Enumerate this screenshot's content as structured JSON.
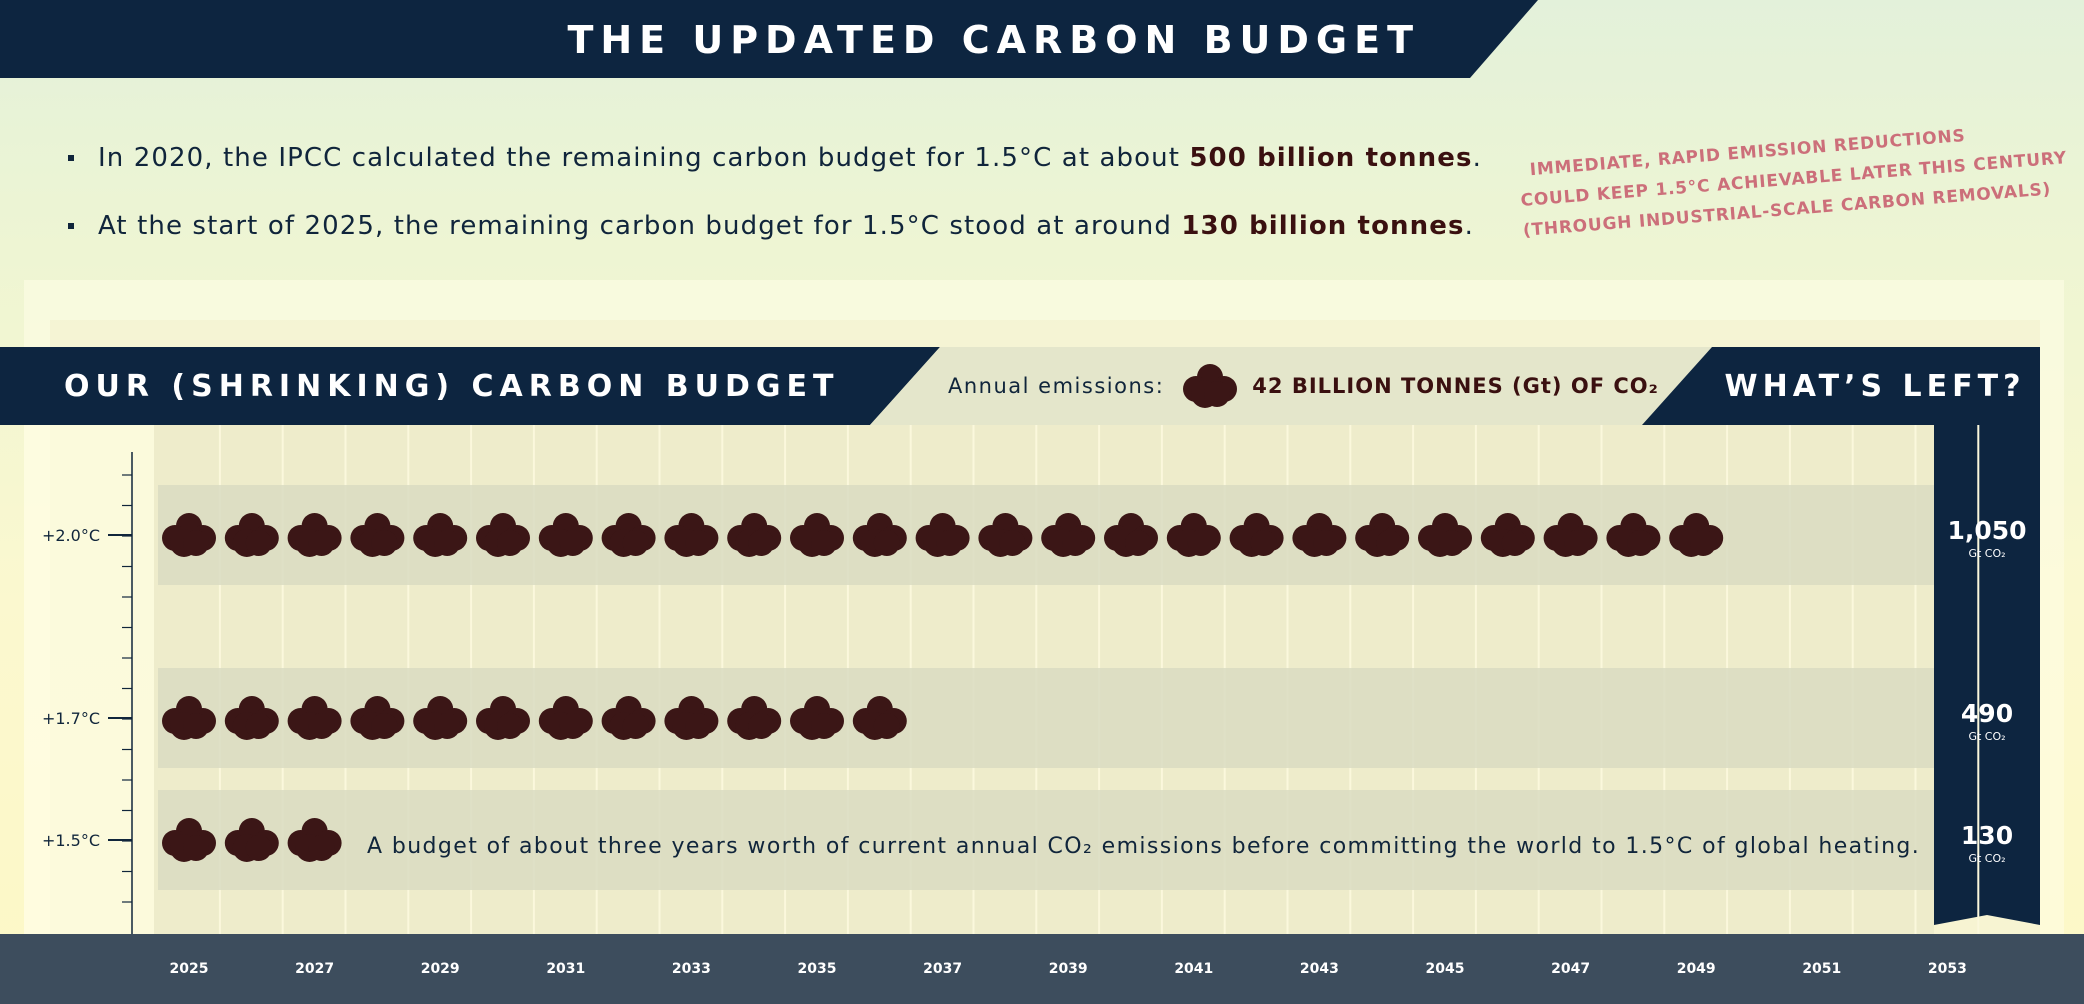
{
  "header": {
    "title": "THE UPDATED CARBON BUDGET"
  },
  "bullets": [
    {
      "before": "In 2020, the IPCC calculated the remaining carbon budget for 1.5°C at about ",
      "bold": "500 billion tonnes",
      "after": "."
    },
    {
      "before": "At the start of 2025, the remaining carbon budget for 1.5°C stood at around ",
      "bold": "130 billion tonnes",
      "after": "."
    }
  ],
  "annotation": {
    "lines": [
      "IMMEDIATE, RAPID EMISSION REDUCTIONS",
      "COULD KEEP 1.5°C ACHIEVABLE LATER THIS CENTURY",
      "(THROUGH INDUSTRIAL-SCALE CARBON REMOVALS)"
    ]
  },
  "section": {
    "title": "OUR (SHRINKING) CARBON BUDGET",
    "legend_label": "Annual emissions:",
    "legend_value": "42 BILLION TONNES (Gt) OF CO₂",
    "right_title": "WHAT’S LEFT?"
  },
  "colors": {
    "navy": "#0d2540",
    "cloud": "#3b1616",
    "band": "#d9dcc2",
    "annotation": "#cc6f7a",
    "footer": "#3d4d5d"
  },
  "icon": "smoke-cloud-icon",
  "chart_data": {
    "type": "bar",
    "unit": "Gt CO₂",
    "x_ticks": [
      "2025",
      "2027",
      "2029",
      "2031",
      "2033",
      "2035",
      "2037",
      "2039",
      "2041",
      "2043",
      "2045",
      "2047",
      "2049",
      "2051",
      "2053"
    ],
    "x_start": 2025,
    "x_end": 2053,
    "annual_emissions_gt": 42,
    "series": [
      {
        "label": "+2.0°C",
        "budget_gt": 1050,
        "value_label": "1,050",
        "unit_label": "Gt CO₂",
        "years_of_emissions": 25
      },
      {
        "label": "+1.7°C",
        "budget_gt": 490,
        "value_label": "490",
        "unit_label": "Gt CO₂",
        "years_of_emissions": 12
      },
      {
        "label": "+1.5°C",
        "budget_gt": 130,
        "value_label": "130",
        "unit_label": "Gt CO₂",
        "years_of_emissions": 3
      }
    ],
    "annotation": "A budget of about three years worth of current annual CO₂ emissions before committing the world to 1.5°C of global heating."
  }
}
